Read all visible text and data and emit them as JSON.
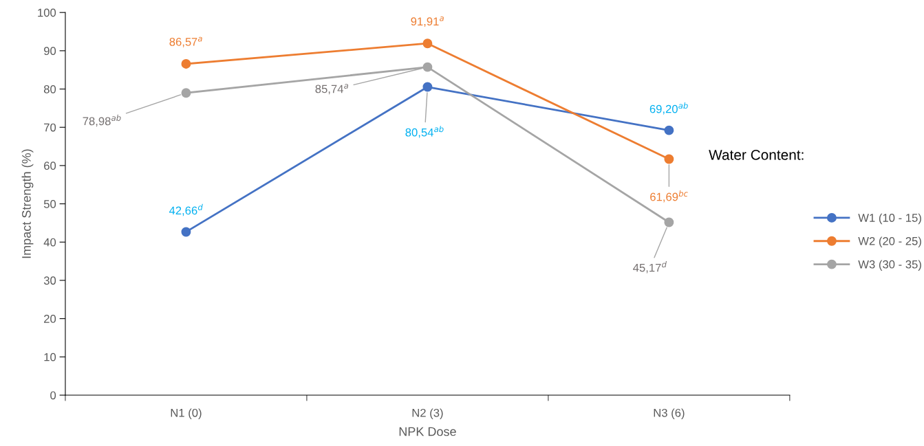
{
  "chart_data": {
    "type": "line",
    "xlabel": "NPK Dose",
    "ylabel": "Impact Strength (%)",
    "legend_title": "Water Content:",
    "categories": [
      "N1 (0)",
      "N2 (3)",
      "N3 (6)"
    ],
    "series": [
      {
        "name": "W1 (10 - 15)",
        "color": "#4472c4",
        "values": [
          42.66,
          80.54,
          69.2
        ],
        "value_labels": [
          "42,66$^{d}$",
          "80,54$^{ab}$",
          "69,20$^{ab}$"
        ]
      },
      {
        "name": "W2 (20 - 25)",
        "color": "#ed7d31",
        "values": [
          86.57,
          91.91,
          61.69
        ],
        "value_labels": [
          "86,57$^{a}$",
          "91,91$^{a}$",
          "61,69$^{bc}$"
        ]
      },
      {
        "name": "W3 (30 - 35)",
        "color": "#a5a5a5",
        "values": [
          78.98,
          85.74,
          45.17
        ],
        "value_labels": [
          "78,98$^{ab}$",
          "85,74$^{a}$",
          "45,17$^{d}$"
        ]
      }
    ],
    "ylim": [
      0,
      100
    ],
    "yticks": [
      0,
      10,
      20,
      30,
      40,
      50,
      60,
      70,
      80,
      90,
      100
    ],
    "marker": "circle",
    "line_style": "solid",
    "legend": "right",
    "grid": false
  }
}
